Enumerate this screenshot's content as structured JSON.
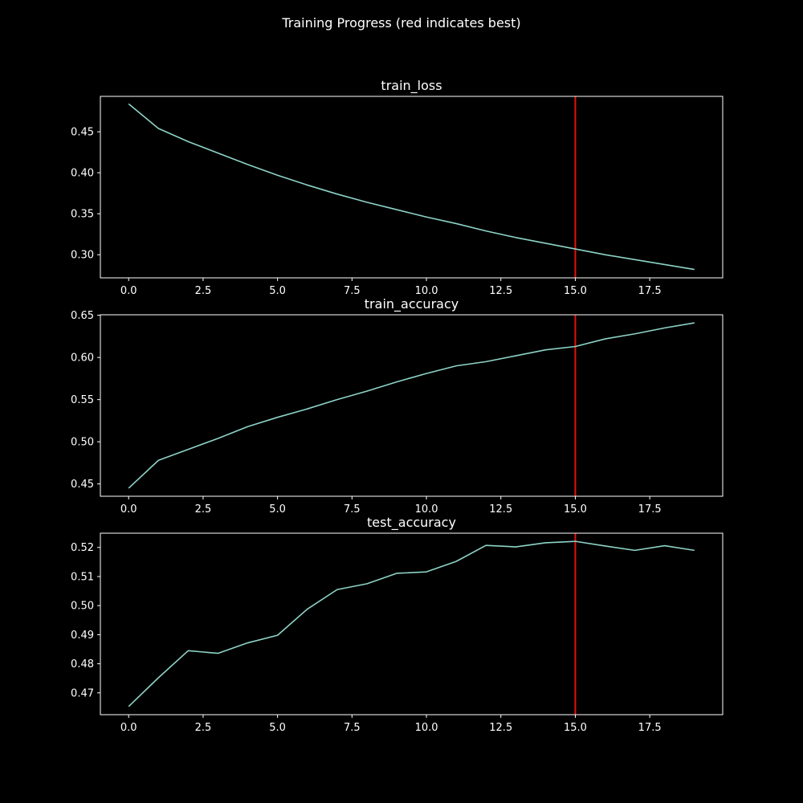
{
  "figure": {
    "suptitle": "Training Progress (red indicates best)",
    "background_color": "#000000",
    "text_color": "#ffffff",
    "line_color": "#8dd3c7",
    "best_marker_color": "#e3120b",
    "grid": false,
    "xlim": [
      -0.95,
      19.95
    ]
  },
  "chart_data": [
    {
      "type": "line",
      "title": "train_loss",
      "xlabel": "",
      "ylabel": "",
      "x": [
        0,
        1,
        2,
        3,
        4,
        5,
        6,
        7,
        8,
        9,
        10,
        11,
        12,
        13,
        14,
        15,
        16,
        17,
        18,
        19
      ],
      "series": [
        {
          "values": [
            0.484,
            0.454,
            0.438,
            0.424,
            0.41,
            0.397,
            0.385,
            0.374,
            0.364,
            0.355,
            0.346,
            0.338,
            0.329,
            0.321,
            0.314,
            0.307,
            0.3,
            0.294,
            0.288,
            0.282
          ]
        }
      ],
      "best_x": 15,
      "ylim": [
        0.2718,
        0.4932
      ],
      "xticks": [
        0.0,
        2.5,
        5.0,
        7.5,
        10.0,
        12.5,
        15.0,
        17.5
      ],
      "xtick_labels": [
        "0.0",
        "2.5",
        "5.0",
        "7.5",
        "10.0",
        "12.5",
        "15.0",
        "17.5"
      ],
      "yticks": [
        0.3,
        0.35,
        0.4,
        0.45
      ],
      "ytick_labels": [
        "0.30",
        "0.35",
        "0.40",
        "0.45"
      ]
    },
    {
      "type": "line",
      "title": "train_accuracy",
      "xlabel": "",
      "ylabel": "",
      "x": [
        0,
        1,
        2,
        3,
        4,
        5,
        6,
        7,
        8,
        9,
        10,
        11,
        12,
        13,
        14,
        15,
        16,
        17,
        18,
        19
      ],
      "series": [
        {
          "values": [
            0.445,
            0.478,
            0.491,
            0.504,
            0.518,
            0.529,
            0.539,
            0.55,
            0.56,
            0.571,
            0.581,
            0.59,
            0.595,
            0.602,
            0.609,
            0.613,
            0.622,
            0.628,
            0.635,
            0.641
          ]
        }
      ],
      "best_x": 15,
      "ylim": [
        0.4354,
        0.6506
      ],
      "xticks": [
        0.0,
        2.5,
        5.0,
        7.5,
        10.0,
        12.5,
        15.0,
        17.5
      ],
      "xtick_labels": [
        "0.0",
        "2.5",
        "5.0",
        "7.5",
        "10.0",
        "12.5",
        "15.0",
        "17.5"
      ],
      "yticks": [
        0.45,
        0.5,
        0.55,
        0.6,
        0.65
      ],
      "ytick_labels": [
        "0.45",
        "0.50",
        "0.55",
        "0.60",
        "0.65"
      ]
    },
    {
      "type": "line",
      "title": "test_accuracy",
      "xlabel": "",
      "ylabel": "",
      "x": [
        0,
        1,
        2,
        3,
        4,
        5,
        6,
        7,
        8,
        9,
        10,
        11,
        12,
        13,
        14,
        15,
        16,
        17,
        18,
        19
      ],
      "series": [
        {
          "values": [
            0.4653,
            0.4752,
            0.4845,
            0.4836,
            0.4872,
            0.4898,
            0.4988,
            0.5055,
            0.5075,
            0.5111,
            0.5116,
            0.5152,
            0.5207,
            0.5202,
            0.5216,
            0.5221,
            0.5205,
            0.519,
            0.5206,
            0.519
          ]
        }
      ],
      "best_x": 15,
      "ylim": [
        0.4625,
        0.5249
      ],
      "xticks": [
        0.0,
        2.5,
        5.0,
        7.5,
        10.0,
        12.5,
        15.0,
        17.5
      ],
      "xtick_labels": [
        "0.0",
        "2.5",
        "5.0",
        "7.5",
        "10.0",
        "12.5",
        "15.0",
        "17.5"
      ],
      "yticks": [
        0.47,
        0.48,
        0.49,
        0.5,
        0.51,
        0.52
      ],
      "ytick_labels": [
        "0.47",
        "0.48",
        "0.49",
        "0.50",
        "0.51",
        "0.52"
      ]
    }
  ]
}
